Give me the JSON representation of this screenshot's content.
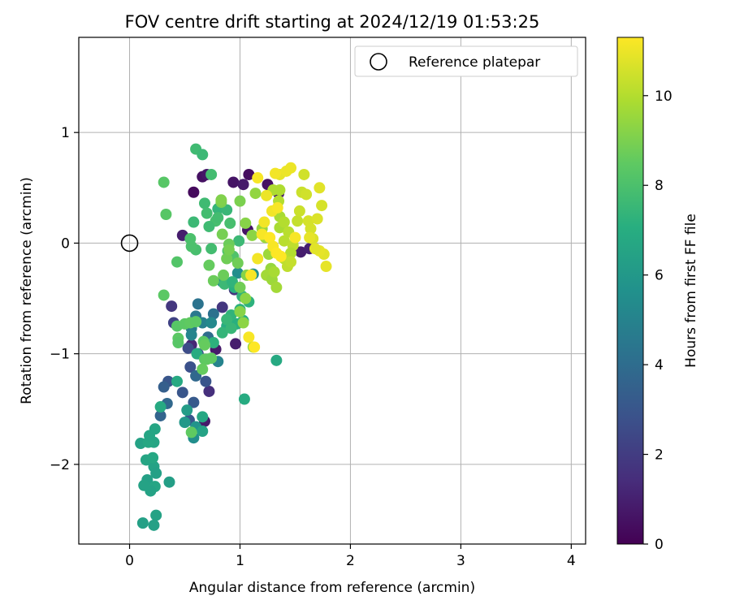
{
  "chart_data": {
    "type": "scatter",
    "title": "FOV centre drift starting at 2024/12/19 01:53:25",
    "xlabel": "Angular distance from reference (arcmin)",
    "ylabel": "Rotation from reference (arcmin)",
    "xlim": [
      -0.46,
      4.13
    ],
    "ylim": [
      -2.72,
      1.86
    ],
    "x_ticks": [
      0,
      1,
      2,
      3,
      4
    ],
    "y_ticks": [
      -2,
      -1,
      0,
      1
    ],
    "x_tick_labels": [
      "0",
      "1",
      "2",
      "3",
      "4"
    ],
    "y_tick_labels": [
      "−2",
      "−1",
      "0",
      "1"
    ],
    "grid": true,
    "legend": {
      "position": "top-right",
      "entries": [
        {
          "label": "Reference platepar",
          "marker": "open-circle",
          "x": 0,
          "y": 0
        }
      ]
    },
    "colorbar": {
      "label": "Hours from first FF file",
      "range": [
        0,
        11.3
      ],
      "ticks": [
        0,
        2,
        4,
        6,
        8,
        10
      ],
      "tick_labels": [
        "0",
        "2",
        "4",
        "6",
        "8",
        "10"
      ],
      "colormap": "viridis"
    },
    "points": [
      [
        0.58,
        0.46,
        0.3
      ],
      [
        0.66,
        0.6,
        0.5
      ],
      [
        0.7,
        0.62,
        0.7
      ],
      [
        1.08,
        0.62,
        0.4
      ],
      [
        0.94,
        0.55,
        0.6
      ],
      [
        1.03,
        0.53,
        0.8
      ],
      [
        1.25,
        0.53,
        0.5
      ],
      [
        1.35,
        0.45,
        0.7
      ],
      [
        0.48,
        0.07,
        0.9
      ],
      [
        1.07,
        0.12,
        0.6
      ],
      [
        1.55,
        -0.08,
        0.9
      ],
      [
        1.63,
        -0.05,
        1.0
      ],
      [
        0.78,
        -0.96,
        0.8
      ],
      [
        0.96,
        -0.91,
        0.9
      ],
      [
        0.68,
        -1.61,
        0.8
      ],
      [
        0.56,
        -0.92,
        1.2
      ],
      [
        0.72,
        -1.34,
        1.5
      ],
      [
        0.84,
        -0.58,
        1.8
      ],
      [
        0.38,
        -0.57,
        1.8
      ],
      [
        0.95,
        -0.42,
        1.7
      ],
      [
        0.4,
        -0.72,
        2.2
      ],
      [
        0.53,
        -0.95,
        2.6
      ],
      [
        0.55,
        -1.12,
        2.8
      ],
      [
        0.62,
        -1.0,
        2.7
      ],
      [
        0.69,
        -1.25,
        2.9
      ],
      [
        0.48,
        -1.35,
        3.0
      ],
      [
        0.58,
        -1.44,
        3.2
      ],
      [
        0.54,
        -1.6,
        3.0
      ],
      [
        0.35,
        -1.25,
        3.0
      ],
      [
        0.31,
        -1.3,
        3.4
      ],
      [
        0.28,
        -1.56,
        3.6
      ],
      [
        0.34,
        -1.45,
        3.8
      ],
      [
        0.6,
        -1.2,
        3.8
      ],
      [
        0.71,
        -0.85,
        4.0
      ],
      [
        0.76,
        -0.64,
        4.2
      ],
      [
        0.6,
        -0.66,
        4.5
      ],
      [
        0.62,
        -0.55,
        4.3
      ],
      [
        0.56,
        -0.77,
        4.6
      ],
      [
        0.66,
        -0.72,
        4.9
      ],
      [
        0.56,
        -0.83,
        5.1
      ],
      [
        0.8,
        -1.07,
        5.0
      ],
      [
        0.74,
        -0.72,
        5.3
      ],
      [
        0.98,
        -0.27,
        5.5
      ],
      [
        1.12,
        -0.28,
        5.6
      ],
      [
        0.84,
        -0.35,
        5.2
      ],
      [
        0.58,
        -1.76,
        5.5
      ],
      [
        0.6,
        -1.66,
        5.8
      ],
      [
        0.5,
        -1.62,
        6.0
      ],
      [
        0.52,
        -1.51,
        6.2
      ],
      [
        0.36,
        -2.16,
        6.3
      ],
      [
        0.16,
        -2.14,
        6.4
      ],
      [
        0.22,
        -2.02,
        6.5
      ],
      [
        0.24,
        -2.08,
        6.4
      ],
      [
        0.23,
        -2.2,
        6.6
      ],
      [
        0.19,
        -2.24,
        6.5
      ],
      [
        0.13,
        -2.19,
        6.5
      ],
      [
        0.12,
        -2.53,
        6.4
      ],
      [
        0.24,
        -2.46,
        6.5
      ],
      [
        0.22,
        -2.55,
        6.4
      ],
      [
        0.15,
        -1.96,
        6.6
      ],
      [
        0.21,
        -1.94,
        6.7
      ],
      [
        0.22,
        -1.8,
        6.6
      ],
      [
        0.1,
        -1.81,
        6.5
      ],
      [
        0.17,
        -1.8,
        6.7
      ],
      [
        0.18,
        -1.74,
        6.6
      ],
      [
        0.23,
        -1.68,
        6.6
      ],
      [
        0.28,
        -1.48,
        6.8
      ],
      [
        0.43,
        -1.25,
        6.8
      ],
      [
        0.66,
        -1.57,
        6.7
      ],
      [
        0.66,
        -1.7,
        6.5
      ],
      [
        1.04,
        -1.41,
        6.9
      ],
      [
        1.33,
        -1.06,
        6.8
      ],
      [
        0.61,
        -1.0,
        6.9
      ],
      [
        0.88,
        -0.75,
        7.0
      ],
      [
        0.95,
        -0.4,
        7.1
      ],
      [
        1.0,
        -0.6,
        7.2
      ],
      [
        1.02,
        -0.48,
        7.3
      ],
      [
        1.08,
        -0.53,
        7.2
      ],
      [
        1.03,
        -0.7,
        7.0
      ],
      [
        0.97,
        -0.73,
        7.1
      ],
      [
        0.92,
        -0.65,
        7.3
      ],
      [
        0.76,
        -0.9,
        7.2
      ],
      [
        0.84,
        -0.81,
        7.4
      ],
      [
        0.88,
        -0.69,
        7.5
      ],
      [
        0.92,
        -0.77,
        7.5
      ],
      [
        0.86,
        -0.37,
        7.6
      ],
      [
        0.93,
        -0.35,
        7.3
      ],
      [
        0.99,
        0.02,
        7.6
      ],
      [
        0.8,
        0.31,
        7.4
      ],
      [
        0.88,
        0.3,
        7.5
      ],
      [
        0.6,
        0.85,
        7.7
      ],
      [
        0.66,
        0.8,
        7.6
      ],
      [
        0.74,
        0.62,
        7.8
      ],
      [
        0.58,
        0.19,
        7.6
      ],
      [
        0.68,
        0.36,
        7.7
      ],
      [
        0.7,
        0.27,
        7.8
      ],
      [
        0.78,
        0.2,
        7.9
      ],
      [
        0.8,
        0.23,
        7.8
      ],
      [
        0.72,
        0.15,
        7.7
      ],
      [
        0.91,
        0.18,
        7.9
      ],
      [
        0.55,
        0.04,
        8.0
      ],
      [
        0.6,
        -0.06,
        7.9
      ],
      [
        0.56,
        -0.03,
        8.0
      ],
      [
        0.74,
        -0.05,
        7.8
      ],
      [
        0.89,
        -0.07,
        8.0
      ],
      [
        0.94,
        -0.12,
        8.1
      ],
      [
        0.31,
        0.55,
        8.3
      ],
      [
        0.33,
        0.26,
        8.3
      ],
      [
        0.43,
        -0.17,
        8.2
      ],
      [
        0.31,
        -0.47,
        8.4
      ],
      [
        0.43,
        -0.75,
        8.3
      ],
      [
        0.44,
        -0.86,
        8.4
      ],
      [
        0.44,
        -0.9,
        8.3
      ],
      [
        0.5,
        -0.73,
        8.4
      ],
      [
        0.55,
        -0.72,
        8.5
      ],
      [
        0.6,
        -0.71,
        8.4
      ],
      [
        0.67,
        -0.89,
        8.4
      ],
      [
        0.68,
        -0.92,
        8.6
      ],
      [
        0.68,
        -1.05,
        8.4
      ],
      [
        0.7,
        -1.05,
        8.5
      ],
      [
        0.74,
        -1.04,
        8.5
      ],
      [
        0.66,
        -1.14,
        8.6
      ],
      [
        0.56,
        -1.71,
        8.5
      ],
      [
        0.76,
        -0.34,
        8.7
      ],
      [
        0.72,
        -0.2,
        8.6
      ],
      [
        0.85,
        -0.29,
        8.7
      ],
      [
        0.88,
        -0.14,
        8.8
      ],
      [
        0.9,
        -0.01,
        8.7
      ],
      [
        0.98,
        -0.18,
        8.8
      ],
      [
        1.0,
        -0.4,
        8.8
      ],
      [
        0.84,
        0.08,
        8.9
      ],
      [
        0.9,
        -0.06,
        8.9
      ],
      [
        0.83,
        0.37,
        9.0
      ],
      [
        0.83,
        0.39,
        9.1
      ],
      [
        1.0,
        0.38,
        9.0
      ],
      [
        1.05,
        0.18,
        9.2
      ],
      [
        1.06,
        -0.29,
        9.2
      ],
      [
        1.05,
        -0.5,
        9.3
      ],
      [
        1.0,
        -0.62,
        9.2
      ],
      [
        1.03,
        -0.72,
        9.3
      ],
      [
        1.12,
        -0.94,
        9.4
      ],
      [
        1.11,
        0.07,
        9.3
      ],
      [
        1.14,
        0.45,
        9.4
      ],
      [
        1.2,
        0.13,
        9.5
      ],
      [
        1.23,
        0.05,
        9.6
      ],
      [
        1.26,
        -0.1,
        9.6
      ],
      [
        1.28,
        -0.23,
        9.5
      ],
      [
        1.24,
        -0.29,
        9.7
      ],
      [
        1.29,
        -0.33,
        9.6
      ],
      [
        1.33,
        -0.4,
        9.7
      ],
      [
        1.31,
        -0.26,
        9.8
      ],
      [
        1.36,
        0.14,
        9.8
      ],
      [
        1.36,
        0.24,
        9.8
      ],
      [
        1.3,
        0.48,
        9.9
      ],
      [
        1.36,
        0.48,
        9.9
      ],
      [
        1.35,
        0.38,
        10.0
      ],
      [
        1.4,
        0.19,
        10.0
      ],
      [
        1.44,
        0.1,
        10.1
      ],
      [
        1.4,
        0.02,
        10.1
      ],
      [
        1.48,
        -0.02,
        10.2
      ],
      [
        1.46,
        -0.09,
        10.0
      ],
      [
        1.4,
        -0.14,
        10.1
      ],
      [
        1.43,
        -0.21,
        10.2
      ],
      [
        1.46,
        -0.17,
        10.3
      ],
      [
        1.52,
        0.2,
        10.3
      ],
      [
        1.54,
        0.29,
        10.4
      ],
      [
        1.56,
        0.46,
        10.4
      ],
      [
        1.58,
        0.62,
        10.5
      ],
      [
        1.6,
        0.44,
        10.5
      ],
      [
        1.62,
        0.2,
        10.6
      ],
      [
        1.64,
        0.13,
        10.6
      ],
      [
        1.66,
        0.04,
        10.7
      ],
      [
        1.7,
        0.22,
        10.7
      ],
      [
        1.74,
        0.34,
        10.6
      ],
      [
        1.72,
        0.5,
        10.8
      ],
      [
        1.76,
        -0.1,
        10.8
      ],
      [
        1.72,
        -0.07,
        10.9
      ],
      [
        1.78,
        -0.21,
        10.9
      ],
      [
        1.68,
        -0.05,
        10.8
      ],
      [
        1.63,
        0.05,
        10.9
      ],
      [
        1.36,
        0.62,
        10.9
      ],
      [
        1.42,
        0.65,
        11.0
      ],
      [
        1.46,
        0.68,
        11.0
      ],
      [
        1.32,
        0.63,
        11.1
      ],
      [
        1.24,
        0.43,
        11.0
      ],
      [
        1.29,
        0.29,
        11.1
      ],
      [
        1.34,
        0.32,
        11.2
      ],
      [
        1.22,
        0.19,
        11.1
      ],
      [
        1.2,
        0.08,
        11.2
      ],
      [
        1.16,
        0.59,
        11.2
      ],
      [
        1.16,
        -0.14,
        11.1
      ],
      [
        1.1,
        -0.29,
        11.2
      ],
      [
        1.08,
        -0.85,
        11.2
      ],
      [
        1.13,
        -0.94,
        11.3
      ],
      [
        1.27,
        0.05,
        11.3
      ],
      [
        1.3,
        -0.03,
        11.2
      ],
      [
        1.33,
        -0.09,
        11.3
      ],
      [
        1.37,
        -0.12,
        11.3
      ],
      [
        1.5,
        0.05,
        11.2
      ]
    ]
  }
}
